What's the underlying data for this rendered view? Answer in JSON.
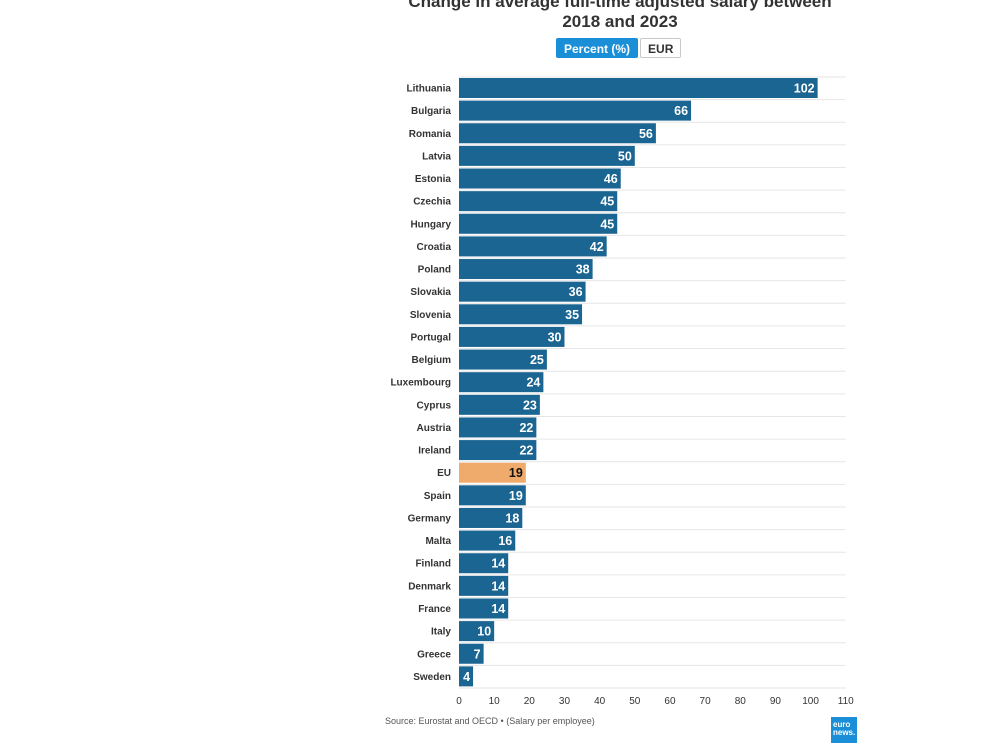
{
  "header": {
    "title_line1": "Change in average full-time adjusted salary between",
    "title_line2": "2018 and 2023"
  },
  "toggle": {
    "percent_label": "Percent (%)",
    "eur_label": "EUR",
    "active": "percent"
  },
  "footer": {
    "source": "Source: Eurostat and OECD • (Salary per employee)",
    "logo_line1": "euro",
    "logo_line2": "news."
  },
  "colors": {
    "bar": "#1b6592",
    "highlight": "#eeab6c",
    "grid": "#e6e6e6",
    "toggle_active": "#1a8fd8"
  },
  "chart_data": {
    "type": "bar",
    "orientation": "horizontal",
    "categories": [
      "Lithuania",
      "Bulgaria",
      "Romania",
      "Latvia",
      "Estonia",
      "Czechia",
      "Hungary",
      "Croatia",
      "Poland",
      "Slovakia",
      "Slovenia",
      "Portugal",
      "Belgium",
      "Luxembourg",
      "Cyprus",
      "Austria",
      "Ireland",
      "EU",
      "Spain",
      "Germany",
      "Malta",
      "Finland",
      "Denmark",
      "France",
      "Italy",
      "Greece",
      "Sweden"
    ],
    "values": [
      102,
      66,
      56,
      50,
      46,
      45,
      45,
      42,
      38,
      36,
      35,
      30,
      25,
      24,
      23,
      22,
      22,
      19,
      19,
      18,
      16,
      14,
      14,
      14,
      10,
      7,
      4
    ],
    "highlight_category": "EU",
    "xlim": [
      0,
      110
    ],
    "xticks": [
      0,
      10,
      20,
      30,
      40,
      50,
      60,
      70,
      80,
      90,
      100,
      110
    ],
    "grid": true
  }
}
